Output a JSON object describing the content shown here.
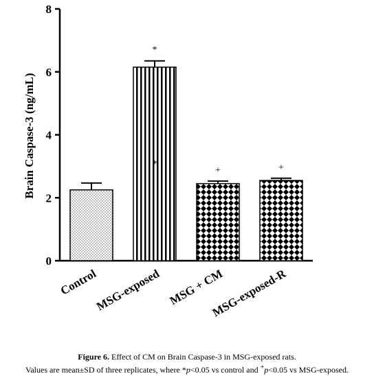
{
  "chart_data": {
    "type": "bar",
    "ylabel": "Brain Caspase-3 (ng/mL)",
    "xlabel": "",
    "ylim": [
      0,
      8
    ],
    "yticks": [
      "0",
      "2",
      "4",
      "6",
      "8"
    ],
    "categories": [
      "Control",
      "MSG-exposed",
      "MSG + CM",
      "MSG-exposed-R"
    ],
    "values": [
      2.25,
      6.15,
      2.45,
      2.55
    ],
    "errors": [
      0.22,
      0.2,
      0.08,
      0.07
    ],
    "markers": [
      "",
      "*",
      "+",
      "+"
    ],
    "inner_marker": [
      "",
      "*",
      "",
      ""
    ],
    "patterns": [
      "dots",
      "vertical-stripes",
      "crosshatch",
      "crosshatch"
    ],
    "grid": false
  },
  "caption": {
    "label": "Figure 6.",
    "title": " Effect of CM on Brain Caspase-3 in MSG-exposed rats.",
    "line2_a": "Values are mean±SD of three replicates, where *",
    "p": "p",
    "line2_b": "<0.05 vs control and ",
    "sup": "+",
    "line2_c": "<0.05 vs MSG-exposed."
  }
}
